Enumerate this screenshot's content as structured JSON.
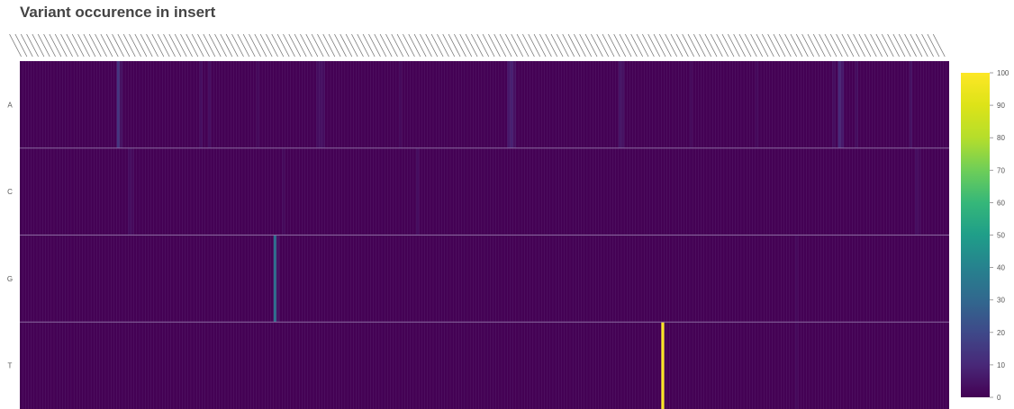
{
  "chart_data": {
    "type": "heatmap",
    "title": "Variant occurence in insert",
    "y_categories": [
      "A",
      "C",
      "G",
      "T"
    ],
    "x_count": 326,
    "colorscale": "viridis",
    "colorbar": {
      "min": 0,
      "max": 100,
      "ticks": [
        0,
        10,
        20,
        30,
        40,
        50,
        60,
        70,
        80,
        90,
        100
      ]
    },
    "base_value": 0,
    "highlights": [
      {
        "row": "A",
        "col": 34,
        "value": 14
      },
      {
        "row": "A",
        "col": 35,
        "value": 4
      },
      {
        "row": "A",
        "col": 63,
        "value": 3
      },
      {
        "row": "A",
        "col": 66,
        "value": 3
      },
      {
        "row": "A",
        "col": 83,
        "value": 2
      },
      {
        "row": "A",
        "col": 104,
        "value": 3
      },
      {
        "row": "A",
        "col": 105,
        "value": 4
      },
      {
        "row": "A",
        "col": 106,
        "value": 3
      },
      {
        "row": "A",
        "col": 133,
        "value": 2
      },
      {
        "row": "A",
        "col": 171,
        "value": 6
      },
      {
        "row": "A",
        "col": 172,
        "value": 8
      },
      {
        "row": "A",
        "col": 173,
        "value": 4
      },
      {
        "row": "A",
        "col": 210,
        "value": 5
      },
      {
        "row": "A",
        "col": 211,
        "value": 4
      },
      {
        "row": "A",
        "col": 235,
        "value": 2
      },
      {
        "row": "A",
        "col": 258,
        "value": 2
      },
      {
        "row": "A",
        "col": 285,
        "value": 3
      },
      {
        "row": "A",
        "col": 287,
        "value": 10
      },
      {
        "row": "A",
        "col": 288,
        "value": 6
      },
      {
        "row": "A",
        "col": 293,
        "value": 3
      },
      {
        "row": "A",
        "col": 312,
        "value": 4
      },
      {
        "row": "C",
        "col": 38,
        "value": 3
      },
      {
        "row": "C",
        "col": 39,
        "value": 2
      },
      {
        "row": "C",
        "col": 92,
        "value": 2
      },
      {
        "row": "C",
        "col": 139,
        "value": 3
      },
      {
        "row": "C",
        "col": 314,
        "value": 3
      },
      {
        "row": "C",
        "col": 315,
        "value": 2
      },
      {
        "row": "G",
        "col": 89,
        "value": 33
      },
      {
        "row": "G",
        "col": 90,
        "value": 4
      },
      {
        "row": "G",
        "col": 272,
        "value": 2
      },
      {
        "row": "T",
        "col": 225,
        "value": 100
      },
      {
        "row": "T",
        "col": 272,
        "value": 2
      }
    ]
  }
}
